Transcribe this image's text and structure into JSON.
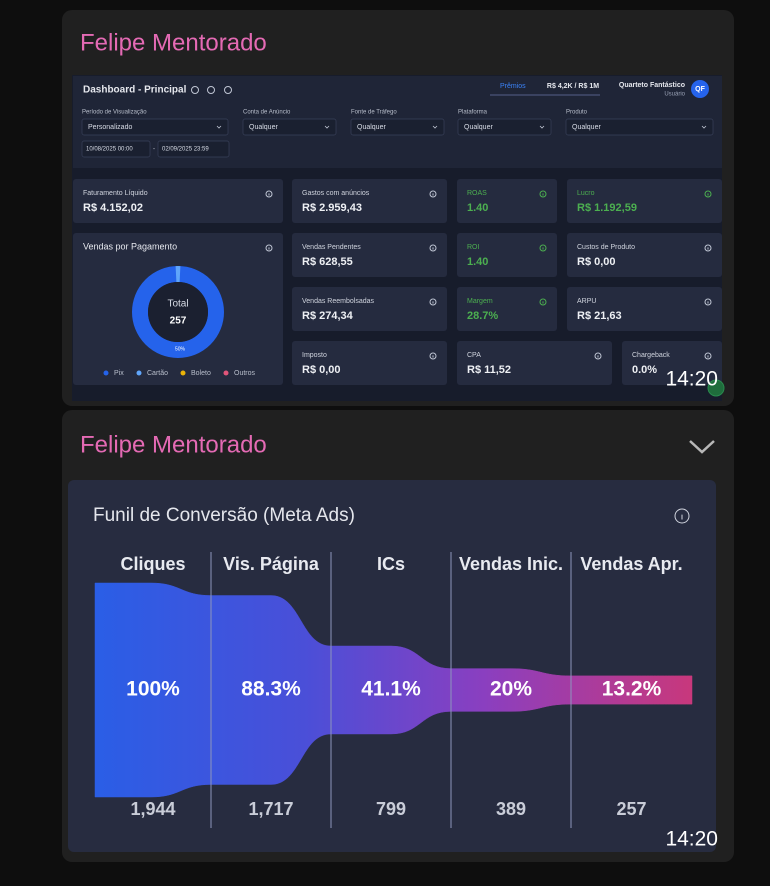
{
  "messages": [
    {
      "sender": "Felipe Mentorado",
      "time": "14:20",
      "dashboard": {
        "title": "Dashboard - Principal",
        "rewards": "Prêmios",
        "progress": "R$ 4,2K / R$ 1M",
        "user": "Quarteto Fantástico",
        "role": "Usuário",
        "avatar": "QF",
        "filters": [
          {
            "label": "Período de Visualização",
            "value": "Personalizado"
          },
          {
            "label": "Conta de Anúncio",
            "value": "Qualquer"
          },
          {
            "label": "Fonte de Tráfego",
            "value": "Qualquer"
          },
          {
            "label": "Plataforma",
            "value": "Qualquer"
          },
          {
            "label": "Produto",
            "value": "Qualquer"
          }
        ],
        "date_from": "10/08/2025 00:00",
        "date_separator": "-",
        "date_to": "02/09/2025 23:59",
        "cards": [
          {
            "label": "Faturamento Líquido",
            "value": "R$ 4.152,02"
          },
          {
            "label": "Gastos com anúncios",
            "value": "R$ 2.959,43"
          },
          {
            "label": "ROAS",
            "value": "1.40"
          },
          {
            "label": "Lucro",
            "value": "R$ 1.192,59"
          },
          {
            "label": "Vendas Pendentes",
            "value": "R$ 628,55"
          },
          {
            "label": "ROI",
            "value": "1.40"
          },
          {
            "label": "Custos de Produto",
            "value": "R$ 0,00"
          },
          {
            "label": "Vendas Reembolsadas",
            "value": "R$ 274,34"
          },
          {
            "label": "Margem",
            "value": "28.7%"
          },
          {
            "label": "ARPU",
            "value": "R$ 21,63"
          },
          {
            "label": "Imposto",
            "value": "R$ 0,00"
          },
          {
            "label": "CPA",
            "value": "R$ 11,52"
          },
          {
            "label": "Chargeback",
            "value": "0.0%"
          }
        ],
        "payments": {
          "title": "Vendas por Pagamento",
          "total_label": "Total",
          "total": "257",
          "slice_label": "50%",
          "legend": [
            "Pix",
            "Cartão",
            "Boleto",
            "Outros"
          ]
        }
      }
    },
    {
      "sender": "Felipe Mentorado",
      "time": "14:20",
      "funnel": {
        "type": "funnel",
        "title": "Funil de Conversão (Meta Ads)",
        "categories": [
          "Cliques",
          "Vis. Página",
          "ICs",
          "Vendas Inic.",
          "Vendas Apr."
        ],
        "values": [
          100,
          88.3,
          41.1,
          20,
          13.2
        ],
        "value_labels": [
          "100%",
          "88.3%",
          "41.1%",
          "20%",
          "13.2%"
        ],
        "counts": [
          "1,944",
          "1,717",
          "799",
          "389",
          "257"
        ]
      }
    }
  ]
}
